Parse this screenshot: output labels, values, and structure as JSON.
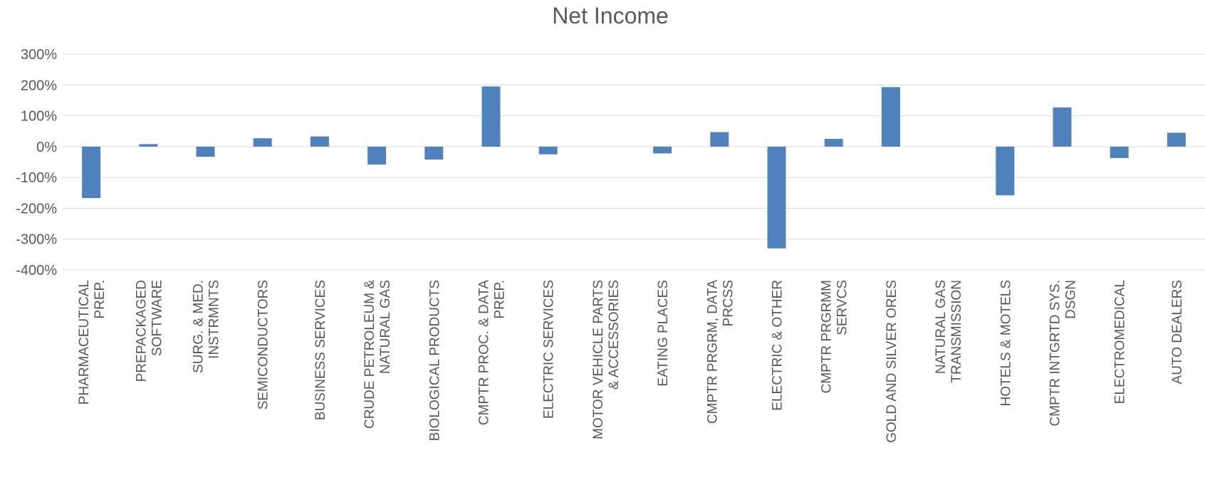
{
  "chart_data": {
    "type": "bar",
    "title": "Net Income",
    "xlabel": "",
    "ylabel": "",
    "ylim": [
      -400,
      300
    ],
    "yticks": [
      300,
      200,
      100,
      0,
      -100,
      -200,
      -300,
      -400
    ],
    "ytick_labels": [
      "300%",
      "200%",
      "100%",
      "0%",
      "-100%",
      "-200%",
      "-300%",
      "-400%"
    ],
    "grid": true,
    "legend": "none",
    "bar_color": "#4f81bd",
    "categories": [
      [
        "PHARMACEUTICAL",
        "PREP."
      ],
      [
        "PREPACKAGED",
        "SOFTWARE"
      ],
      [
        "SURG. & MED.",
        "INSTRMNTS"
      ],
      [
        "SEMICONDUCTORS"
      ],
      [
        "BUSINESS SERVICES"
      ],
      [
        "CRUDE PETROLEUM &",
        "NATURAL GAS"
      ],
      [
        "BIOLOGICAL PRODUCTS"
      ],
      [
        "CMPTR PROC. & DATA",
        "PREP."
      ],
      [
        "ELECTRIC SERVICES"
      ],
      [
        "MOTOR VEHICLE PARTS",
        "& ACCESSORIES"
      ],
      [
        "EATING  PLACES"
      ],
      [
        "CMPTR PRGRM, DATA",
        "PRCSS"
      ],
      [
        "ELECTRIC & OTHER"
      ],
      [
        "CMPTR PRGRMM",
        "SERVCS"
      ],
      [
        "GOLD AND SILVER ORES"
      ],
      [
        "NATURAL GAS",
        "TRANSMISSION"
      ],
      [
        "HOTELS & MOTELS"
      ],
      [
        "CMPTR INTGRTD SYS.",
        "DSGN"
      ],
      [
        "ELECTROMEDICAL"
      ],
      [
        "AUTO DEALERS"
      ]
    ],
    "values": [
      -167,
      8,
      -33,
      27,
      33,
      -58,
      -42,
      195,
      -25,
      0,
      -22,
      47,
      -330,
      25,
      193,
      0,
      -158,
      127,
      -37,
      45
    ]
  }
}
